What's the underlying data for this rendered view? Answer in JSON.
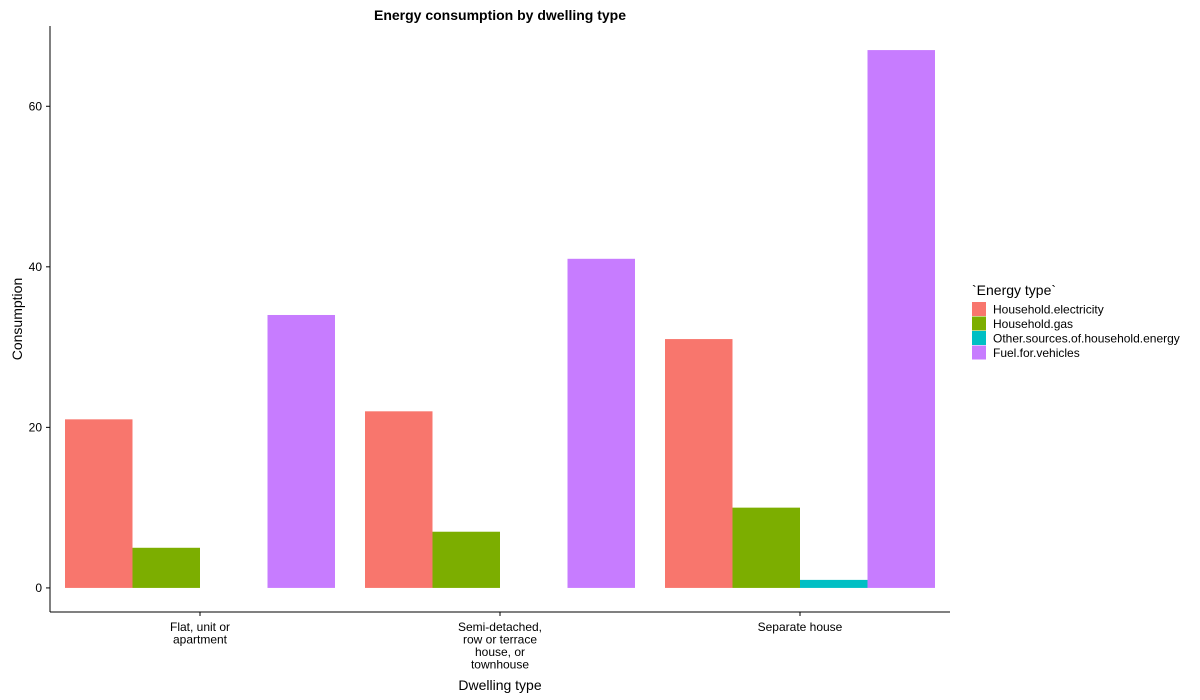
{
  "chart_data": {
    "type": "bar",
    "title": "Energy consumption by dwelling type",
    "xlabel": "Dwelling type",
    "ylabel": "Consumption",
    "ylim": [
      -3,
      70
    ],
    "yticks": [
      0,
      20,
      40,
      60
    ],
    "grid": false,
    "legend": {
      "title": "`Energy type`",
      "position": "right"
    },
    "categories": [
      [
        "Flat, unit or",
        "apartment"
      ],
      [
        "Semi-detached,",
        "row or terrace",
        "house, or",
        "townhouse"
      ],
      [
        "Separate house"
      ]
    ],
    "series": [
      {
        "name": "Household.electricity",
        "color": "#F8766D",
        "values": [
          21,
          22,
          31
        ]
      },
      {
        "name": "Household.gas",
        "color": "#7CAE00",
        "values": [
          5,
          7,
          10
        ]
      },
      {
        "name": "Other.sources.of.household.energy",
        "color": "#00BFC4",
        "values": [
          0,
          0,
          1
        ]
      },
      {
        "name": "Fuel.for.vehicles",
        "color": "#C77CFF",
        "values": [
          34,
          41,
          67
        ]
      }
    ]
  }
}
